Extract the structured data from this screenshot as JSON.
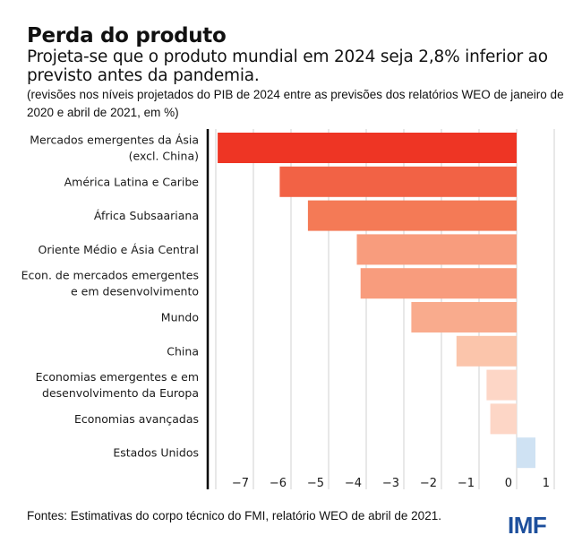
{
  "header": {
    "title": "Perda do produto",
    "subtitle": "Projeta-se que o produto mundial em 2024 seja 2,8% inferior ao previsto antes da pandemia.",
    "note": "(revisões nos níveis projetados do PIB de 2024 entre as previsões dos relatórios WEO de janeiro de 2020 e abril de 2021, em %)"
  },
  "footer": {
    "source": "Fontes: Estimativas do corpo técnico do FMI, relatório WEO de abril de 2021.",
    "logo": "IMF"
  },
  "colors": {
    "logo": "#1d4f9c",
    "axis": "#000000",
    "grid": "#d9d9d9"
  },
  "chart_data": {
    "type": "bar",
    "orientation": "horizontal",
    "title": "Perda do produto",
    "xlabel": "",
    "ylabel": "",
    "xlim": [
      -8,
      1
    ],
    "grid": true,
    "ticks": [
      -7,
      -6,
      -5,
      -4,
      -3,
      -2,
      -1,
      0,
      1
    ],
    "tick_labels": [
      "−7",
      "−6",
      "−5",
      "−4",
      "−3",
      "−2",
      "−1",
      "0",
      "1"
    ],
    "categories": [
      [
        "Mercados emergentes da Ásia",
        "(excl. China)"
      ],
      [
        "América Latina e Caribe"
      ],
      [
        "África Subsaariana"
      ],
      [
        "Oriente Médio e Ásia Central"
      ],
      [
        "Econ. de mercados emergentes",
        "e em desenvolvimento"
      ],
      [
        "Mundo"
      ],
      [
        "China"
      ],
      [
        "Economias emergentes e em",
        "desenvolvimento da Europa"
      ],
      [
        "Economias avançadas"
      ],
      [
        "Estados Unidos"
      ]
    ],
    "values": [
      -7.95,
      -6.3,
      -5.55,
      -4.25,
      -4.15,
      -2.8,
      -1.6,
      -0.8,
      -0.7,
      0.5
    ],
    "bar_colors": [
      "#ee3524",
      "#f26245",
      "#f47a56",
      "#f89c7d",
      "#f89c7d",
      "#f9ab8d",
      "#fbc5ab",
      "#fdd6c6",
      "#fdd6c6",
      "#cfe2f3"
    ]
  }
}
